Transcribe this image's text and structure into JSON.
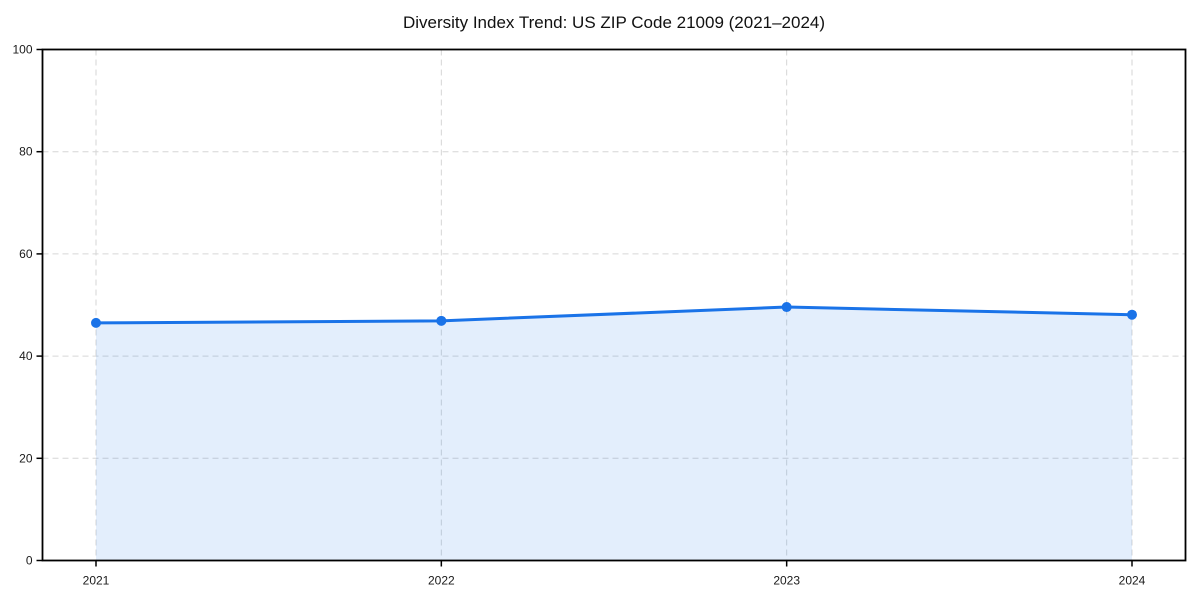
{
  "chart_data": {
    "type": "area",
    "title": "Diversity Index Trend: US ZIP Code 21009 (2021–2024)",
    "x": [
      "2021",
      "2022",
      "2023",
      "2024"
    ],
    "series": [
      {
        "name": "Diversity Index",
        "values": [
          46.5,
          46.9,
          49.6,
          48.1
        ]
      }
    ],
    "xlabel": "",
    "ylabel": "",
    "ylim": [
      0,
      100
    ],
    "yticks": [
      0,
      20,
      40,
      60,
      80,
      100
    ],
    "grid": "dashed, horizontal and vertical at ticks",
    "legend_position": "none",
    "colors": {
      "line": "#1a73e8",
      "marker": "#1a73e8",
      "fill": "rgba(26,115,232,0.12)",
      "grid": "#d6d6d6",
      "spine": "#000000",
      "text": "#1a1a1a"
    }
  }
}
